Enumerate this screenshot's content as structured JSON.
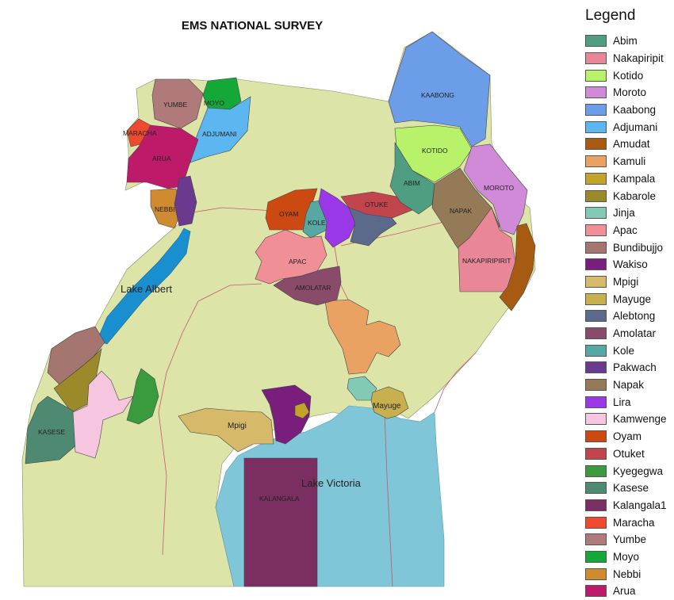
{
  "title": "EMS NATIONAL SURVEY",
  "legend": {
    "title": "Legend",
    "items": [
      {
        "label": "Abim",
        "color": "#4f9e82"
      },
      {
        "label": "Nakapiripit",
        "color": "#e98798"
      },
      {
        "label": "Kotido",
        "color": "#b8f26a"
      },
      {
        "label": "Moroto",
        "color": "#d08ad8"
      },
      {
        "label": "Kaabong",
        "color": "#6c9de9"
      },
      {
        "label": "Adjumani",
        "color": "#5cb6ef"
      },
      {
        "label": "Amudat",
        "color": "#a65a12"
      },
      {
        "label": "Kamuli",
        "color": "#e9a262"
      },
      {
        "label": "Kampala",
        "color": "#c3a42a"
      },
      {
        "label": "Kabarole",
        "color": "#9a8a2a"
      },
      {
        "label": "Jinja",
        "color": "#82c9b6"
      },
      {
        "label": "Apac",
        "color": "#f08f96"
      },
      {
        "label": "Bundibujjo",
        "color": "#a57570"
      },
      {
        "label": "Wakiso",
        "color": "#7a1e7e"
      },
      {
        "label": "Mpigi",
        "color": "#d6ba6a"
      },
      {
        "label": "Mayuge",
        "color": "#c8b04e"
      },
      {
        "label": "Alebtong",
        "color": "#5b6a8a"
      },
      {
        "label": "Amolatar",
        "color": "#8a4a6a"
      },
      {
        "label": "Kole",
        "color": "#56a8a3"
      },
      {
        "label": "Pakwach",
        "color": "#6a3a8e"
      },
      {
        "label": "Napak",
        "color": "#957a58"
      },
      {
        "label": "Lira",
        "color": "#9a38e8"
      },
      {
        "label": "Kamwenge",
        "color": "#f6c6e0"
      },
      {
        "label": "Oyam",
        "color": "#cc4a12"
      },
      {
        "label": "Otuket",
        "color": "#c2454e"
      },
      {
        "label": "Kyegegwa",
        "color": "#3a9a3e"
      },
      {
        "label": "Kasese",
        "color": "#4e8a72"
      },
      {
        "label": "Kalangala1",
        "color": "#7a2e62"
      },
      {
        "label": "Maracha",
        "color": "#ef4a30"
      },
      {
        "label": "Yumbe",
        "color": "#b07a7a"
      },
      {
        "label": "Moyo",
        "color": "#14a838"
      },
      {
        "label": "Nebbi",
        "color": "#d08a30"
      },
      {
        "label": "Arua",
        "color": "#bd1a6a"
      }
    ]
  },
  "map": {
    "base_color": "#dce4a8",
    "water_color": "#7ec6d8",
    "border_color": "#c75a6a",
    "lake_labels": {
      "albert": "Lake Albert",
      "victoria": "Lake Victoria"
    },
    "district_labels": {
      "yumbe": "YUMBE",
      "moyo": "MOYO",
      "maracha": "MARACHA",
      "adjumani": "ADJUMANI",
      "arua": "ARUA",
      "nebbi": "NEBBI",
      "kaabong": "KAABONG",
      "kotido": "KOTIDO",
      "abim": "ABIM",
      "moroto": "MOROTO",
      "napak": "NAPAK",
      "nakapiripit": "NAKAPIRIPIRIT",
      "oyam": "OYAM",
      "kole": "KOLE",
      "otuke": "OTUKE",
      "apac": "APAC",
      "amolatar": "AMOLATAR",
      "kasese": "KASESE",
      "mpigi": "Mpigi",
      "mayuge": "Mayuge",
      "kalangala": "KALANGALA"
    }
  }
}
